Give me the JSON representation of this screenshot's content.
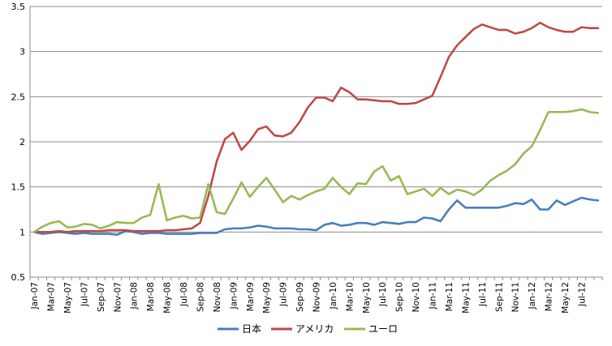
{
  "chart_data": {
    "type": "line",
    "title": "",
    "xlabel": "",
    "ylabel": "",
    "ylim": [
      0.5,
      3.5
    ],
    "yticks": [
      "0.5",
      "1",
      "1.5",
      "2",
      "2.5",
      "3",
      "3.5"
    ],
    "grid": "horizontal",
    "legend_position": "bottom",
    "x": [
      "Jan-07",
      "Feb-07",
      "Mar-07",
      "Apr-07",
      "May-07",
      "Jun-07",
      "Jul-07",
      "Aug-07",
      "Sep-07",
      "Oct-07",
      "Nov-07",
      "Dec-07",
      "Jan-08",
      "Feb-08",
      "Mar-08",
      "Apr-08",
      "May-08",
      "Jun-08",
      "Jul-08",
      "Aug-08",
      "Sep-08",
      "Oct-08",
      "Nov-08",
      "Dec-08",
      "Jan-09",
      "Feb-09",
      "Mar-09",
      "Apr-09",
      "May-09",
      "Jun-09",
      "Jul-09",
      "Aug-09",
      "Sep-09",
      "Oct-09",
      "Nov-09",
      "Dec-09",
      "Jan-10",
      "Feb-10",
      "Mar-10",
      "Apr-10",
      "May-10",
      "Jun-10",
      "Jul-10",
      "Aug-10",
      "Sep-10",
      "Oct-10",
      "Nov-10",
      "Dec-10",
      "Jan-11",
      "Feb-11",
      "Mar-11",
      "Apr-11",
      "May-11",
      "Jun-11",
      "Jul-11",
      "Aug-11",
      "Sep-11",
      "Oct-11",
      "Nov-11",
      "Dec-11",
      "Jan-12",
      "Feb-12",
      "Mar-12",
      "Apr-12",
      "May-12",
      "Jun-12",
      "Jul-12",
      "Aug-12",
      "Sep-12"
    ],
    "xtick_labels": [
      "Jan-07",
      "Mar-07",
      "May-07",
      "Jul-07",
      "Sep-07",
      "Nov-07",
      "Jan-08",
      "Mar-08",
      "May-08",
      "Jul-08",
      "Sep-08",
      "Nov-08",
      "Jan-09",
      "Mar-09",
      "May-09",
      "Jul-09",
      "Sep-09",
      "Nov-09",
      "Jan-10",
      "Mar-10",
      "May-10",
      "Jul-10",
      "Sep-10",
      "Nov-10",
      "Jan-11",
      "Mar-11",
      "May-11",
      "Jul-11",
      "Sep-11",
      "Nov-11",
      "Jan-12",
      "Mar-12",
      "May-12",
      "Jul-12"
    ],
    "series": [
      {
        "name": "日本",
        "color": "#4a7ebb",
        "values": [
          1.0,
          0.98,
          0.99,
          1.0,
          0.99,
          0.98,
          0.99,
          0.98,
          0.98,
          0.98,
          0.97,
          1.01,
          1.0,
          0.98,
          0.99,
          0.99,
          0.98,
          0.98,
          0.98,
          0.98,
          0.99,
          0.99,
          0.99,
          1.03,
          1.04,
          1.04,
          1.05,
          1.07,
          1.06,
          1.04,
          1.04,
          1.04,
          1.03,
          1.03,
          1.02,
          1.08,
          1.1,
          1.07,
          1.08,
          1.1,
          1.1,
          1.08,
          1.11,
          1.1,
          1.09,
          1.11,
          1.11,
          1.16,
          1.15,
          1.12,
          1.25,
          1.35,
          1.27,
          1.27,
          1.27,
          1.27,
          1.27,
          1.29,
          1.32,
          1.31,
          1.36,
          1.25,
          1.25,
          1.35,
          1.3,
          1.34,
          1.38,
          1.36,
          1.35
        ]
      },
      {
        "name": "アメリカ",
        "color": "#be4b48",
        "values": [
          1.0,
          1.0,
          1.0,
          1.01,
          1.0,
          1.01,
          1.01,
          1.01,
          1.01,
          1.02,
          1.02,
          1.02,
          1.01,
          1.01,
          1.01,
          1.01,
          1.02,
          1.02,
          1.03,
          1.04,
          1.1,
          1.4,
          1.78,
          2.03,
          2.1,
          1.91,
          2.01,
          2.14,
          2.17,
          2.07,
          2.06,
          2.1,
          2.22,
          2.38,
          2.49,
          2.49,
          2.45,
          2.6,
          2.55,
          2.47,
          2.47,
          2.46,
          2.45,
          2.45,
          2.42,
          2.42,
          2.43,
          2.47,
          2.51,
          2.72,
          2.94,
          3.07,
          3.16,
          3.25,
          3.3,
          3.27,
          3.24,
          3.24,
          3.2,
          3.22,
          3.26,
          3.32,
          3.27,
          3.24,
          3.22,
          3.22,
          3.27,
          3.26,
          3.26
        ]
      },
      {
        "name": "ユーロ",
        "color": "#98b954",
        "values": [
          1.0,
          1.06,
          1.1,
          1.12,
          1.05,
          1.06,
          1.09,
          1.08,
          1.04,
          1.07,
          1.11,
          1.1,
          1.1,
          1.16,
          1.19,
          1.53,
          1.13,
          1.16,
          1.18,
          1.15,
          1.16,
          1.53,
          1.22,
          1.2,
          1.37,
          1.55,
          1.39,
          1.5,
          1.6,
          1.47,
          1.33,
          1.4,
          1.36,
          1.41,
          1.45,
          1.48,
          1.6,
          1.5,
          1.42,
          1.54,
          1.53,
          1.67,
          1.73,
          1.57,
          1.62,
          1.42,
          1.45,
          1.48,
          1.4,
          1.49,
          1.42,
          1.47,
          1.45,
          1.41,
          1.47,
          1.57,
          1.63,
          1.68,
          1.75,
          1.87,
          1.95,
          2.13,
          2.33,
          2.33,
          2.33,
          2.34,
          2.36,
          2.33,
          2.32
        ]
      }
    ]
  }
}
